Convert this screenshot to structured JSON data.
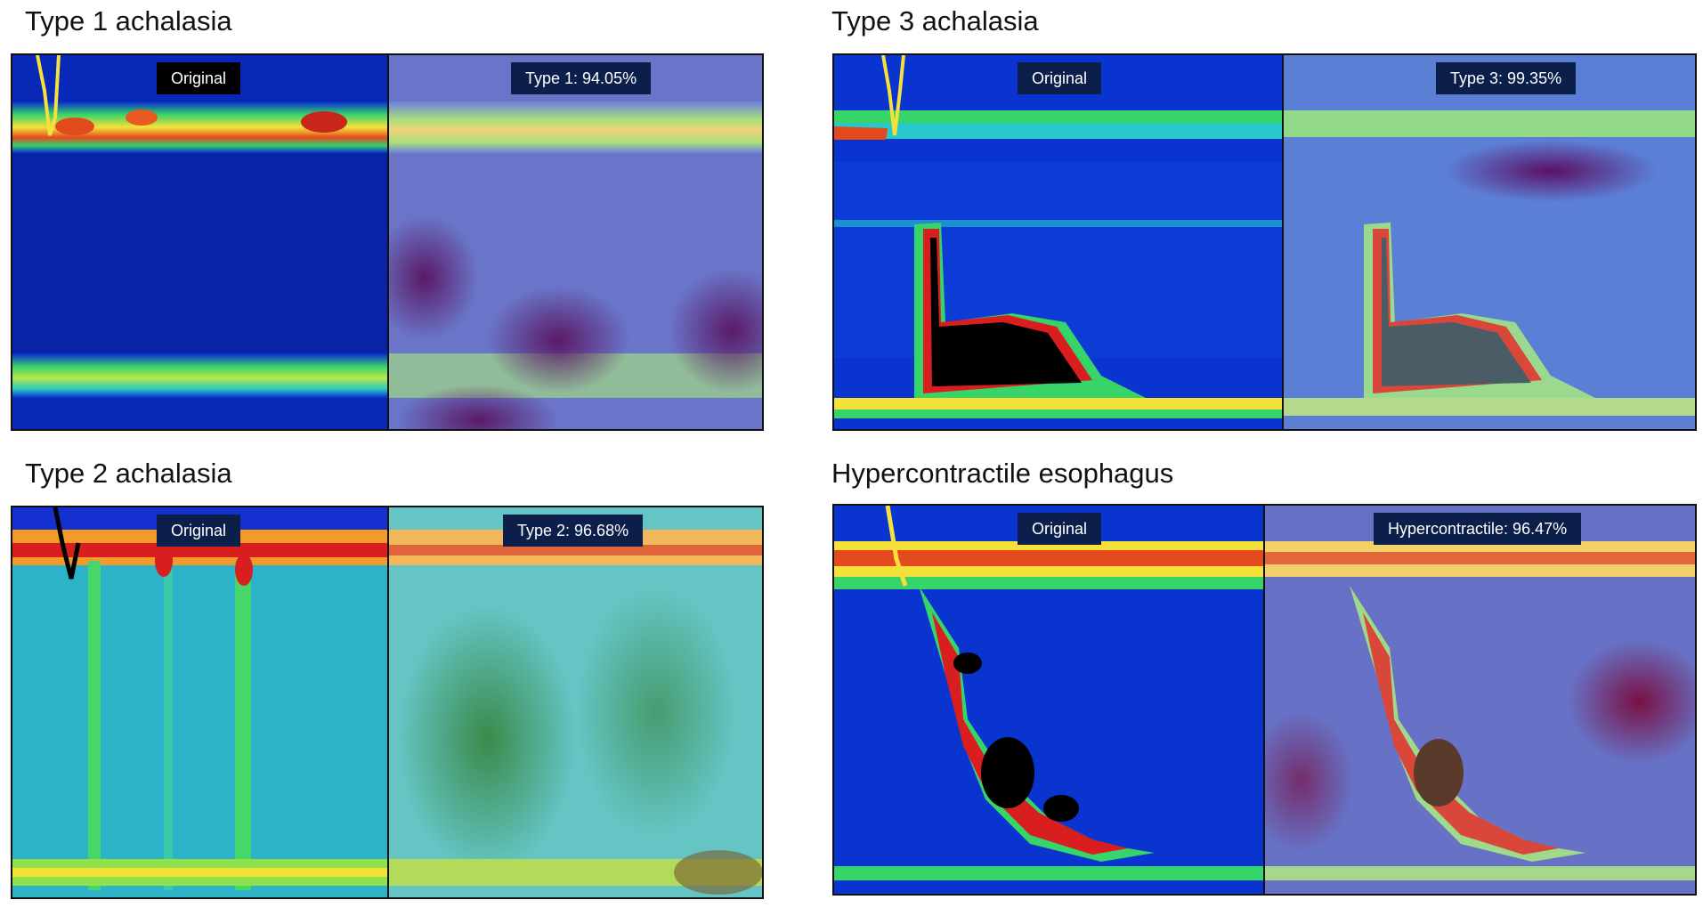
{
  "panels": [
    {
      "title": "Type 1 achalasia",
      "original_label": "Original",
      "prediction_label": "Type 1: 94.05%"
    },
    {
      "title": "Type 3 achalasia",
      "original_label": "Original",
      "prediction_label": "Type 3: 99.35%"
    },
    {
      "title": "Type 2 achalasia",
      "original_label": "Original",
      "prediction_label": "Type 2: 96.68%"
    },
    {
      "title": "Hypercontractile esophagus",
      "original_label": "Original",
      "prediction_label": "Hypercontractile: 96.47%"
    }
  ],
  "colors": {
    "background_blue": "#0a2bd0",
    "label_background": "#0b1f4a",
    "heat_red": "#d81e1e",
    "heat_yellow": "#f5e13a",
    "heat_green": "#35d46a",
    "heat_dark": "#000000"
  }
}
